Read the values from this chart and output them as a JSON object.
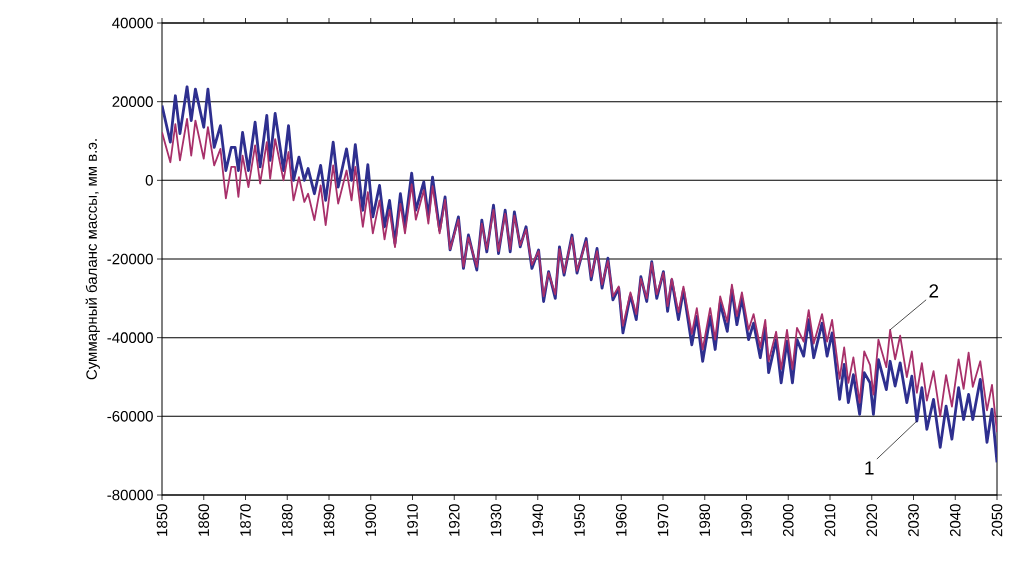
{
  "chart_data": {
    "type": "line",
    "ylabel": "Суммарный баланс массы, мм в.э.",
    "x": [
      1850,
      1852,
      1853.2,
      1854.3,
      1856,
      1857,
      1858,
      1860,
      1861,
      1862.5,
      1864,
      1865.3,
      1866.6,
      1867.5,
      1868.3,
      1869.3,
      1870.7,
      1872.3,
      1873.5,
      1875.1,
      1875.9,
      1877.1,
      1879.1,
      1880.3,
      1881.5,
      1882.8,
      1884.1,
      1885,
      1886.5,
      1888,
      1889.2,
      1891,
      1892.2,
      1894.2,
      1895.4,
      1896.3,
      1898.1,
      1899.3,
      1900.5,
      1902.1,
      1903.3,
      1904.5,
      1905.8,
      1907.1,
      1908.2,
      1909.8,
      1910.8,
      1912.7,
      1913.8,
      1914.8,
      1916.5,
      1917.8,
      1919,
      1921,
      1922.2,
      1923.4,
      1925.4,
      1926.6,
      1927.8,
      1929.4,
      1930.6,
      1932.2,
      1933.4,
      1934.4,
      1935.8,
      1937.2,
      1938.6,
      1940.2,
      1941.4,
      1942.6,
      1944.2,
      1945.2,
      1946.3,
      1948.2,
      1949.4,
      1951.6,
      1952.8,
      1954.2,
      1955.4,
      1956.8,
      1958,
      1959.4,
      1960.4,
      1962.2,
      1963.6,
      1964.7,
      1966.1,
      1967.3,
      1968.5,
      1970.1,
      1971.1,
      1972.1,
      1973.7,
      1974.9,
      1976.9,
      1978.1,
      1979.5,
      1981.3,
      1982.5,
      1983.7,
      1985.4,
      1986.5,
      1987.7,
      1988.9,
      1990.5,
      1991.7,
      1993.3,
      1994.5,
      1995.3,
      1997.1,
      1998.3,
      1999.7,
      2001,
      2002.1,
      2003.7,
      2004.9,
      2006.1,
      2008.1,
      2009.3,
      2010.5,
      2012.3,
      2013.4,
      2014.4,
      2015.6,
      2017.1,
      2018.2,
      2019.6,
      2020.4,
      2021.6,
      2023.5,
      2024.4,
      2025.6,
      2026.8,
      2028.4,
      2029.6,
      2030.8,
      2032,
      2033.2,
      2034.8,
      2036.4,
      2037.8,
      2039.2,
      2040.8,
      2042,
      2043.2,
      2044.2,
      2046,
      2047.6,
      2048.8,
      2050
    ],
    "series": [
      {
        "color": "#2e2f8f",
        "values": [
          19000,
          9700,
          21500,
          11900,
          23800,
          15200,
          23200,
          13500,
          23200,
          8400,
          13900,
          2500,
          8400,
          8400,
          2500,
          12200,
          2500,
          14800,
          3400,
          16500,
          5100,
          17000,
          2500,
          13900,
          0,
          5900,
          0,
          3000,
          -3400,
          3800,
          -5100,
          9700,
          -1700,
          8000,
          0,
          9100,
          -7600,
          4000,
          -9300,
          -1300,
          -11800,
          -5100,
          -16000,
          -3400,
          -11800,
          1800,
          -7600,
          -400,
          -9300,
          800,
          -12700,
          -4200,
          -17700,
          -9300,
          -22400,
          -13900,
          -22800,
          -10100,
          -18200,
          -6300,
          -18600,
          -7600,
          -18200,
          -8000,
          -16900,
          -11800,
          -22400,
          -17700,
          -30800,
          -23200,
          -30000,
          -16900,
          -24100,
          -13900,
          -23600,
          -14800,
          -25300,
          -17300,
          -27400,
          -19800,
          -30400,
          -27400,
          -38800,
          -29100,
          -35400,
          -24500,
          -30800,
          -20700,
          -30000,
          -23200,
          -33300,
          -25300,
          -35400,
          -27800,
          -41800,
          -34600,
          -46000,
          -34600,
          -43000,
          -31200,
          -38400,
          -27800,
          -36700,
          -30000,
          -40500,
          -36300,
          -45100,
          -37500,
          -48900,
          -40500,
          -51500,
          -40900,
          -51500,
          -40500,
          -44700,
          -35400,
          -45100,
          -36300,
          -44700,
          -38800,
          -55700,
          -46800,
          -56500,
          -49400,
          -59500,
          -48900,
          -51500,
          -59500,
          -45600,
          -53200,
          -46000,
          -52300,
          -46400,
          -56500,
          -49800,
          -61200,
          -52700,
          -63300,
          -55700,
          -67900,
          -57400,
          -65800,
          -52700,
          -60800,
          -54400,
          -60800,
          -50600,
          -66600,
          -58200,
          -71700
        ]
      },
      {
        "color": "#a8306a",
        "values": [
          12200,
          4600,
          14300,
          5100,
          15600,
          6300,
          15200,
          5500,
          13500,
          3800,
          8000,
          -4600,
          3400,
          3400,
          -4200,
          6300,
          -1700,
          8900,
          -800,
          9700,
          400,
          10500,
          0,
          7200,
          -5100,
          800,
          -5500,
          -3400,
          -10100,
          -1300,
          -11400,
          3800,
          -5900,
          2500,
          -5100,
          3400,
          -11800,
          -3000,
          -13500,
          -5100,
          -15000,
          -7500,
          -17000,
          -6000,
          -13500,
          -1000,
          -10000,
          -2500,
          -11000,
          -1500,
          -13500,
          -5000,
          -17500,
          -10000,
          -22000,
          -14500,
          -22000,
          -11000,
          -17500,
          -7500,
          -18000,
          -8500,
          -17500,
          -9000,
          -16500,
          -12500,
          -21500,
          -18000,
          -29500,
          -23500,
          -29000,
          -17500,
          -23500,
          -14500,
          -23000,
          -15500,
          -24500,
          -18000,
          -26500,
          -20500,
          -29500,
          -27000,
          -37000,
          -28500,
          -34000,
          -25000,
          -30000,
          -21000,
          -29000,
          -23500,
          -32000,
          -25000,
          -33500,
          -27000,
          -39000,
          -32500,
          -43000,
          -32500,
          -40500,
          -29500,
          -36000,
          -26500,
          -34500,
          -28500,
          -38000,
          -34000,
          -42500,
          -35500,
          -46000,
          -38500,
          -48000,
          -38000,
          -48000,
          -37500,
          -41000,
          -33000,
          -41500,
          -34000,
          -41000,
          -35500,
          -50500,
          -42500,
          -51500,
          -45000,
          -56500,
          -43500,
          -47000,
          -54500,
          -40500,
          -47500,
          -38000,
          -45500,
          -39500,
          -50000,
          -43500,
          -54000,
          -46500,
          -56000,
          -48500,
          -60000,
          -49500,
          -57500,
          -45500,
          -53000,
          -43800,
          -52500,
          -46000,
          -58500,
          -52000,
          -64000
        ]
      }
    ],
    "xlim": [
      1850,
      2050
    ],
    "xticks": [
      1850,
      1860,
      1870,
      1880,
      1890,
      1900,
      1910,
      1920,
      1930,
      1940,
      1950,
      1960,
      1970,
      1980,
      1990,
      2000,
      2010,
      2020,
      2030,
      2040,
      2050
    ],
    "ylim": [
      -80000,
      40000
    ],
    "yticks": [
      -80000,
      -60000,
      -40000,
      -20000,
      0,
      20000,
      40000
    ],
    "grid": "y",
    "annotations": [
      {
        "text": "1",
        "x": 2030.8,
        "y": -61200
      },
      {
        "text": "2",
        "x": 2024.4,
        "y": -38000
      }
    ]
  }
}
